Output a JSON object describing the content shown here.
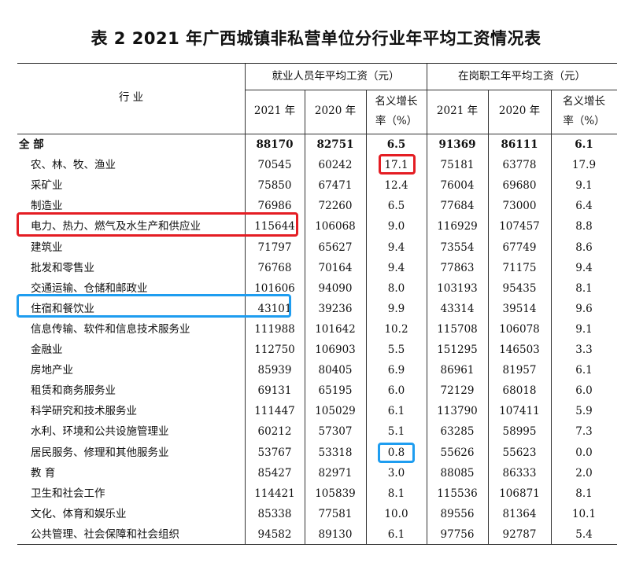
{
  "title": "表 2   2021 年广西城镇非私营单位分行业年平均工资情况表",
  "header": {
    "industry": "行  业",
    "group1": "就业人员年平均工资（元）",
    "group2": "在岗职工年平均工资（元）",
    "y2021": "2021 年",
    "y2020": "2020 年",
    "growth_line1": "名义增长",
    "growth_line2": "率（%）"
  },
  "rows": [
    {
      "industry": "全  部",
      "a2021": "88170",
      "a2020": "82751",
      "ag": "6.5",
      "b2021": "91369",
      "b2020": "86111",
      "bg": "6.1",
      "bold": true
    },
    {
      "industry": "农、林、牧、渔业",
      "a2021": "70545",
      "a2020": "60242",
      "ag": "17.1",
      "b2021": "75181",
      "b2020": "63778",
      "bg": "17.9"
    },
    {
      "industry": "采矿业",
      "a2021": "75850",
      "a2020": "67471",
      "ag": "12.4",
      "b2021": "76004",
      "b2020": "69680",
      "bg": "9.1"
    },
    {
      "industry": "制造业",
      "a2021": "76986",
      "a2020": "72260",
      "ag": "6.5",
      "b2021": "77684",
      "b2020": "73000",
      "bg": "6.4"
    },
    {
      "industry": "电力、热力、燃气及水生产和供应业",
      "a2021": "115644",
      "a2020": "106068",
      "ag": "9.0",
      "b2021": "116929",
      "b2020": "107457",
      "bg": "8.8"
    },
    {
      "industry": "建筑业",
      "a2021": "71797",
      "a2020": "65627",
      "ag": "9.4",
      "b2021": "73554",
      "b2020": "67749",
      "bg": "8.6"
    },
    {
      "industry": "批发和零售业",
      "a2021": "76768",
      "a2020": "70164",
      "ag": "9.4",
      "b2021": "77863",
      "b2020": "71175",
      "bg": "9.4"
    },
    {
      "industry": "交通运输、仓储和邮政业",
      "a2021": "101606",
      "a2020": "94090",
      "ag": "8.0",
      "b2021": "103193",
      "b2020": "95435",
      "bg": "8.1"
    },
    {
      "industry": "住宿和餐饮业",
      "a2021": "43101",
      "a2020": "39236",
      "ag": "9.9",
      "b2021": "43314",
      "b2020": "39514",
      "bg": "9.6"
    },
    {
      "industry": "信息传输、软件和信息技术服务业",
      "a2021": "111988",
      "a2020": "101642",
      "ag": "10.2",
      "b2021": "115708",
      "b2020": "106078",
      "bg": "9.1"
    },
    {
      "industry": "金融业",
      "a2021": "112750",
      "a2020": "106903",
      "ag": "5.5",
      "b2021": "151295",
      "b2020": "146503",
      "bg": "3.3"
    },
    {
      "industry": "房地产业",
      "a2021": "85939",
      "a2020": "80405",
      "ag": "6.9",
      "b2021": "86961",
      "b2020": "81957",
      "bg": "6.1"
    },
    {
      "industry": "租赁和商务服务业",
      "a2021": "69131",
      "a2020": "65195",
      "ag": "6.0",
      "b2021": "72129",
      "b2020": "68018",
      "bg": "6.0"
    },
    {
      "industry": "科学研究和技术服务业",
      "a2021": "111447",
      "a2020": "105029",
      "ag": "6.1",
      "b2021": "113790",
      "b2020": "107411",
      "bg": "5.9"
    },
    {
      "industry": "水利、环境和公共设施管理业",
      "a2021": "60212",
      "a2020": "57307",
      "ag": "5.1",
      "b2021": "63285",
      "b2020": "58995",
      "bg": "7.3"
    },
    {
      "industry": "居民服务、修理和其他服务业",
      "a2021": "53767",
      "a2020": "53318",
      "ag": "0.8",
      "b2021": "55626",
      "b2020": "55623",
      "bg": "0.0"
    },
    {
      "industry": "教  育",
      "a2021": "85427",
      "a2020": "82971",
      "ag": "3.0",
      "b2021": "88085",
      "b2020": "86333",
      "bg": "2.0"
    },
    {
      "industry": "卫生和社会工作",
      "a2021": "114421",
      "a2020": "105839",
      "ag": "8.1",
      "b2021": "115536",
      "b2020": "106871",
      "bg": "8.1"
    },
    {
      "industry": "文化、体育和娱乐业",
      "a2021": "85338",
      "a2020": "77581",
      "ag": "10.0",
      "b2021": "89556",
      "b2020": "81364",
      "bg": "10.1"
    },
    {
      "industry": "公共管理、社会保障和社会组织",
      "a2021": "94582",
      "a2020": "89130",
      "ag": "6.1",
      "b2021": "97756",
      "b2020": "92787",
      "bg": "5.4"
    }
  ],
  "annotations": {
    "red_color": "#e41d23",
    "blue_color": "#1e9df0"
  }
}
